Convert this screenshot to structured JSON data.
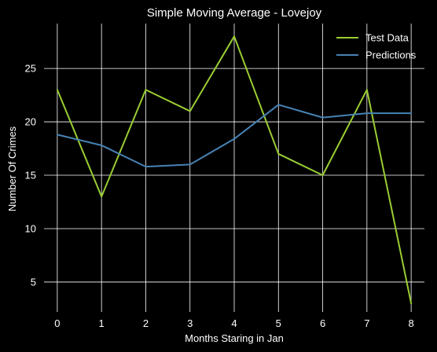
{
  "chart_data": {
    "type": "line",
    "title": "Simple Moving Average - Lovejoy",
    "xlabel": "Months Staring in Jan",
    "ylabel": "Number Of Crimes",
    "x": [
      0,
      1,
      2,
      3,
      4,
      5,
      6,
      7,
      8
    ],
    "xticks": [
      "0",
      "1",
      "2",
      "3",
      "4",
      "5",
      "6",
      "7",
      "8"
    ],
    "yticks": [
      5,
      10,
      15,
      20,
      25
    ],
    "xlim": [
      -0.3,
      8.3
    ],
    "ylim": [
      2.2,
      29.2
    ],
    "grid": true,
    "legend_position": "top-right",
    "series": [
      {
        "name": "Test Data",
        "color": "#9acd32",
        "values": [
          23,
          13,
          23,
          21,
          28,
          17,
          15,
          23,
          3
        ]
      },
      {
        "name": "Predictions",
        "color": "#4682b4",
        "values": [
          18.8,
          17.8,
          15.8,
          16.0,
          18.4,
          21.6,
          20.4,
          20.8,
          20.8
        ]
      }
    ]
  }
}
